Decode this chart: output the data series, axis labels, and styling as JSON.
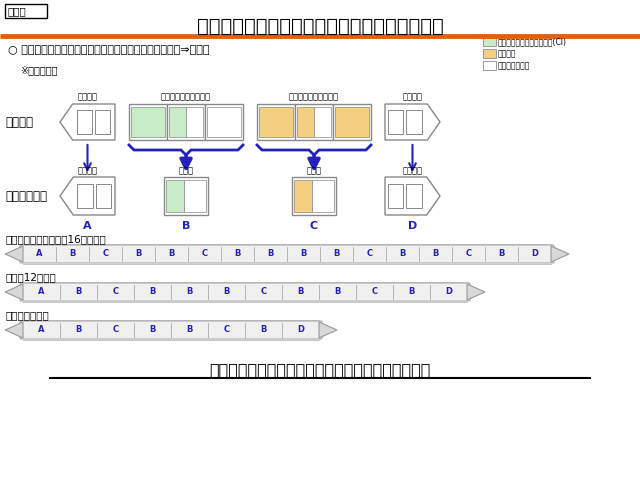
{
  "title": "様々な新幹線に適用可能な「標準車両」の実現",
  "subtitle": "別紙２",
  "bullet": "○ 床下機器配置の最適化により号車種別を最少化（８種⇒４種）",
  "note": "※イメージ図",
  "label_jurai": "【従来】",
  "label_standard": "【標準車両】",
  "label_sensya1": "先頭車１",
  "label_sensya2": "先頭車２",
  "label_nashi": "変圧器なし（３種類）",
  "label_ari": "変圧器あり（３種類）",
  "label_1type": "１種類",
  "legend_ci": "：コンバータ・インバータ(CI)",
  "legend_trans": "：変圧器",
  "legend_other": "：その他の機器",
  "color_ci": "#c8ebc8",
  "color_trans": "#f5cf80",
  "color_other": "#ffffff",
  "color_border": "#888888",
  "color_orange_line": "#e06010",
  "color_blue": "#2222bb",
  "color_dark_blue": "#1a1ab0",
  "train16_label": "東海道・山陽新幹線（16両編成）",
  "train16_cars": [
    "A",
    "B",
    "C",
    "B",
    "B",
    "C",
    "B",
    "B",
    "B",
    "B",
    "C",
    "B",
    "B",
    "C",
    "B",
    "D"
  ],
  "train12_label": "（例）12両編成",
  "train12_cars": [
    "A",
    "B",
    "C",
    "B",
    "B",
    "B",
    "C",
    "B",
    "B",
    "C",
    "B",
    "D"
  ],
  "train8_label": "（例）８両編成",
  "train8_cars": [
    "A",
    "B",
    "C",
    "B",
    "B",
    "C",
    "B",
    "D"
  ],
  "footer": "基本設計の変更なく、様々な編成構成に対応が可能",
  "bg_color": "#ffffff"
}
